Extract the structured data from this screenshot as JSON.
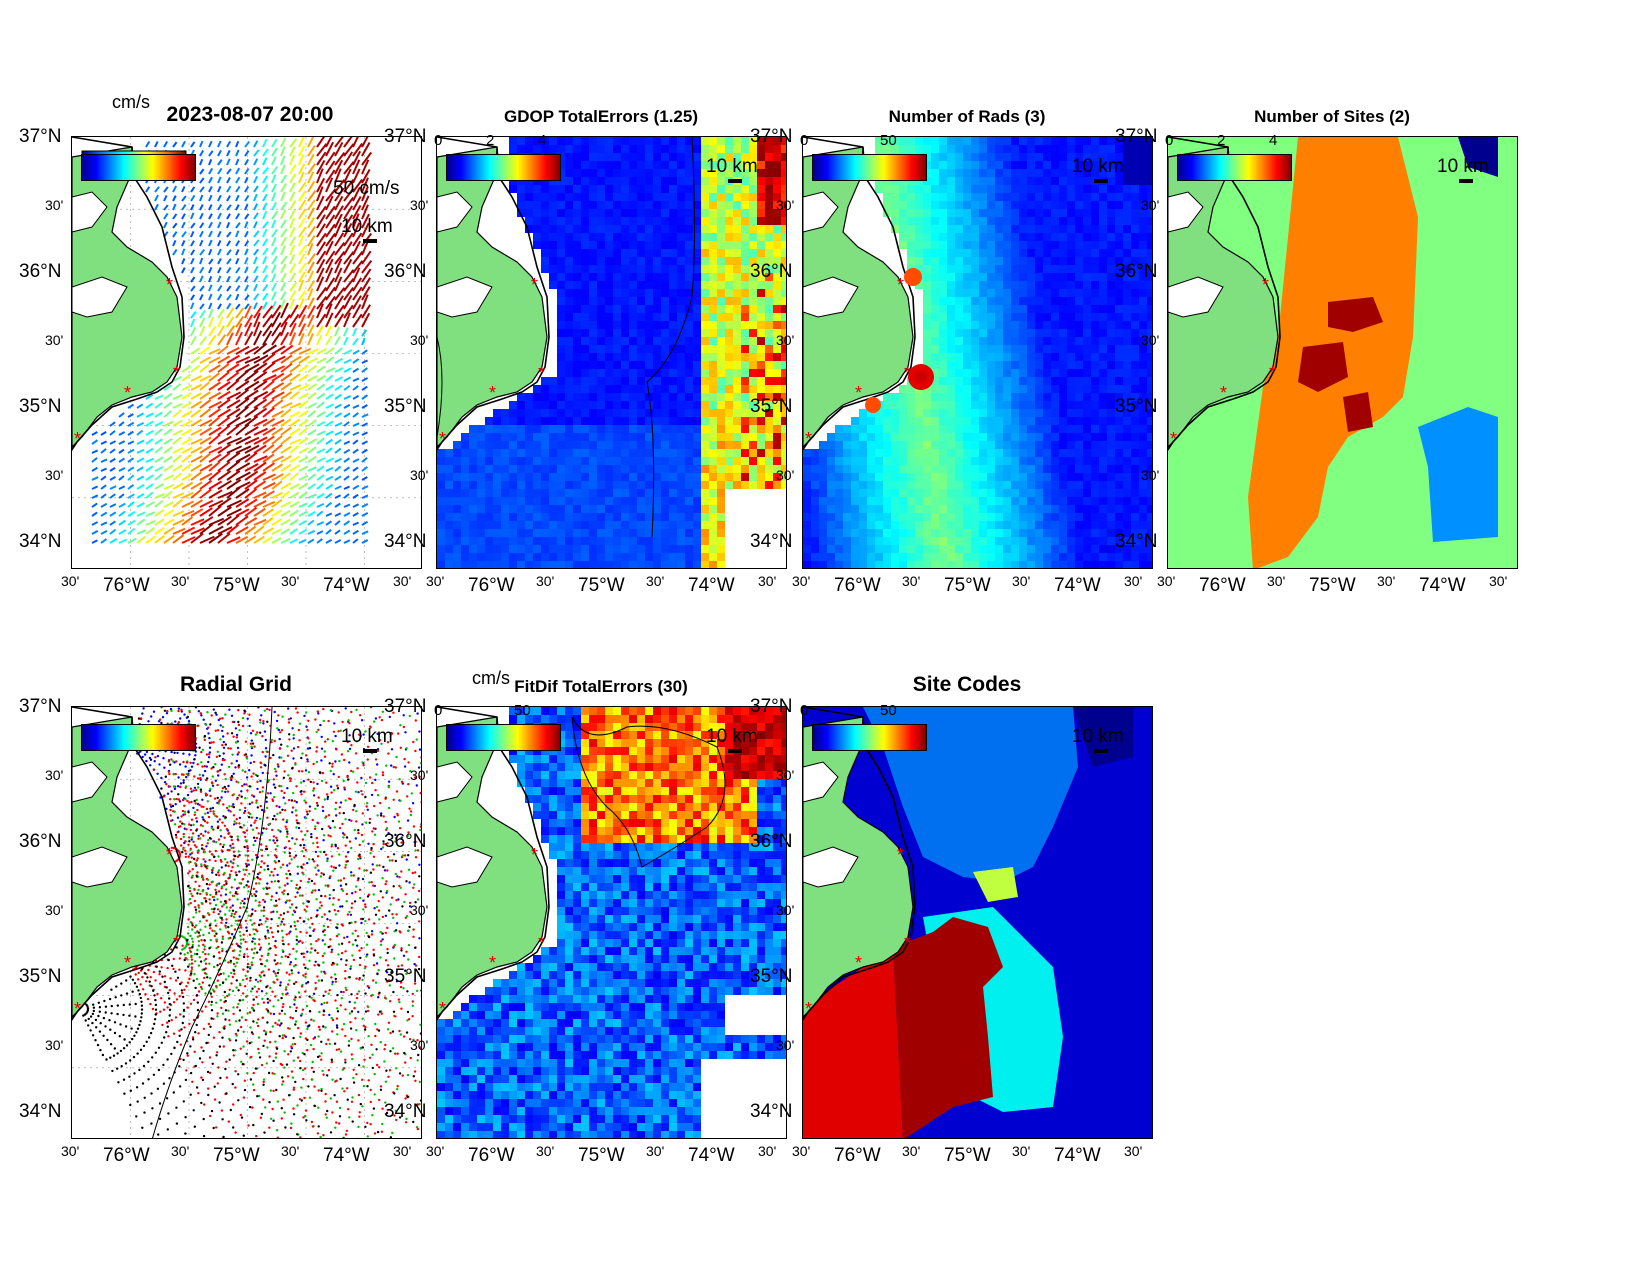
{
  "panels": [
    {
      "id": "vectors",
      "title": "2023-08-07 20:00",
      "cbar_ticks": [],
      "unit": "cm/s",
      "ref_vector": "50 cm/s",
      "scale": "10 km"
    },
    {
      "id": "gdop",
      "title": "GDOP TotalErrors (1.25)",
      "cbar_ticks": [
        "0",
        "2",
        "4"
      ],
      "scale": "10 km",
      "contour": "1.25"
    },
    {
      "id": "rads",
      "title": "Number of Rads (3)",
      "cbar_ticks": [
        "0",
        "50"
      ],
      "scale": "10 km",
      "contour": "3"
    },
    {
      "id": "sites",
      "title": "Number of Sites (2)",
      "cbar_ticks": [
        "0",
        "2",
        "4"
      ],
      "scale": "10 km",
      "contour": "2"
    },
    {
      "id": "radial",
      "title": "Radial Grid",
      "cbar_ticks": [],
      "scale": "10 km",
      "contour": "100"
    },
    {
      "id": "fitdif",
      "title": "FitDif TotalErrors (30)",
      "cbar_ticks": [
        "0",
        "50"
      ],
      "unit": "cm/s",
      "scale": "10 km",
      "contour": "30"
    },
    {
      "id": "codes",
      "title": "Site Codes",
      "cbar_ticks": [
        "0",
        "50"
      ],
      "scale": "10 km"
    }
  ],
  "axes": {
    "y_major": [
      "37°N",
      "36°N",
      "35°N",
      "34°N"
    ],
    "y_minor": "30'",
    "x_major": [
      "76°W",
      "75°W",
      "74°W"
    ],
    "x_minor": "30'",
    "lat_range": [
      34,
      37
    ],
    "lon_range": [
      -76.5,
      -73.5
    ]
  },
  "colors": {
    "land": "#80e080",
    "colormap": "jet"
  }
}
